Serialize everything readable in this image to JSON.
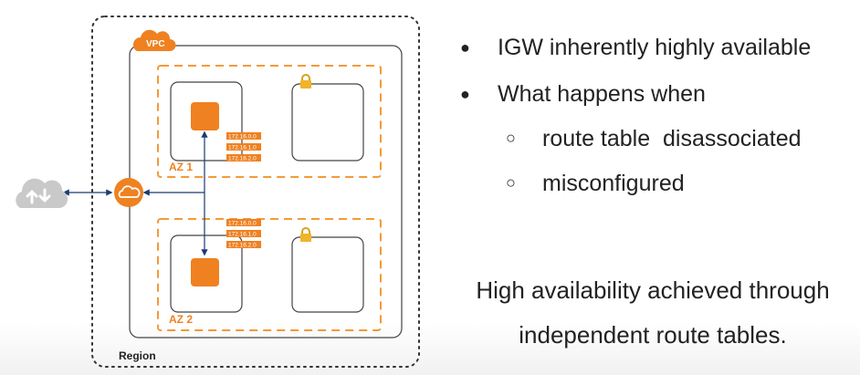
{
  "diagram": {
    "vpc_label": "VPC",
    "region_label": "Region",
    "az1_label": "AZ 1",
    "az2_label": "AZ 2",
    "route_table_az1": [
      "172.16.0.0",
      "172.16.1.0",
      "172.16.2.0"
    ],
    "route_table_az2": [
      "172.16.0.0",
      "172.16.1.0",
      "172.16.2.0"
    ],
    "colors": {
      "accent": "#ef8121",
      "az_border": "#f29b38",
      "line": "#1b3a72",
      "cloud": "#c9c9c9"
    },
    "icons": [
      "internet-cloud-icon",
      "igw-icon",
      "instance-icon",
      "lock-icon"
    ]
  },
  "bullets": {
    "items": [
      {
        "mark": "●",
        "text": "IGW inherently highly available"
      },
      {
        "mark": "●",
        "text": "What happens when"
      },
      {
        "mark": "○",
        "text": "route table  disassociated"
      },
      {
        "mark": "○",
        "text": "misconfigured"
      }
    ]
  },
  "summary": {
    "line1": "High availability achieved through",
    "line2": "independent route tables."
  }
}
